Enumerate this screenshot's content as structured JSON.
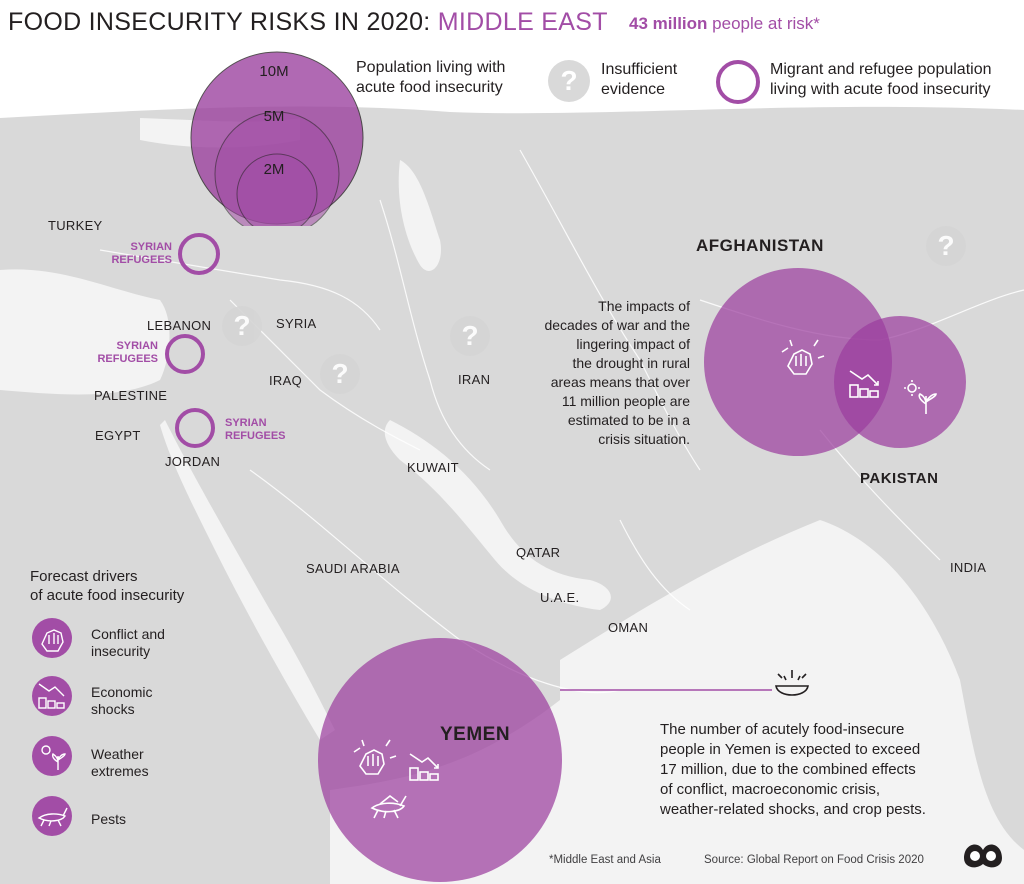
{
  "title": {
    "main": "FOOD INSECURITY RISKS IN 2020:",
    "region": "MIDDLE EAST"
  },
  "subtitle": {
    "highlight": "43 million",
    "rest": "people at risk*"
  },
  "legend": {
    "population": {
      "label": "Population living with\nacute food insecurity",
      "rings": [
        "10M",
        "5M",
        "2M"
      ]
    },
    "insufficient": {
      "label": "Insufficient\nevidence",
      "icon": "question-mark-icon"
    },
    "migrant": {
      "label": "Migrant and refugee population\nliving with acute food insecurity"
    }
  },
  "countries": {
    "turkey": "TURKEY",
    "lebanon": "LEBANON",
    "syria": "SYRIA",
    "palestine": "PALESTINE",
    "egypt": "EGYPT",
    "jordan": "JORDAN",
    "iraq": "IRAQ",
    "iran": "IRAN",
    "kuwait": "KUWAIT",
    "qatar": "QATAR",
    "saudi_arabia": "SAUDI ARABIA",
    "uae": "U.A.E.",
    "oman": "OMAN",
    "india": "INDIA",
    "afghanistan": "AFGHANISTAN",
    "pakistan": "PAKISTAN",
    "yemen": "YEMEN"
  },
  "refugee_label": "SYRIAN\nREFUGEES",
  "afghanistan_note": "The impacts of\ndecades of war and the\nlingering impact of\nthe drought in rural\nareas means that over\n11 million people are\nestimated to be in a\ncrisis situation.",
  "yemen_note": "The number of acutely food-insecure\npeople in Yemen is expected to exceed\n17 million, due to the combined effects\nof conflict, macroeconomic crisis,\nweather-related shocks, and crop pests.",
  "drivers": {
    "title": "Forecast drivers\nof acute food insecurity",
    "items": [
      {
        "label": "Conflict and\ninsecurity",
        "icon": "conflict-fist-icon"
      },
      {
        "label": "Economic\nshocks",
        "icon": "economic-decline-icon"
      },
      {
        "label": "Weather\nextremes",
        "icon": "weather-sun-plant-icon"
      },
      {
        "label": "Pests",
        "icon": "locust-icon"
      }
    ]
  },
  "footnote": "*Middle East and Asia",
  "source": "Source: Global Report on Food Crisis 2020",
  "colors": {
    "accent": "#a24da6",
    "bubble": "#9b3f9e",
    "land": "#d9d9d9",
    "water": "#f4f4f4"
  }
}
